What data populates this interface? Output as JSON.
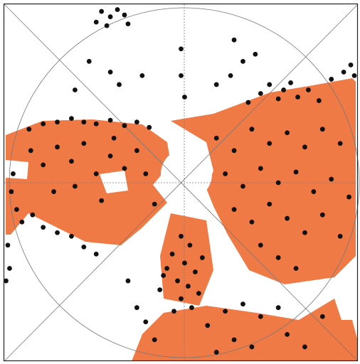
{
  "chart_data": {
    "type": "scatter",
    "color": "#111111",
    "xlim": [
      -1,
      1
    ],
    "ylim": [
      -1,
      1
    ],
    "x": [
      -0.45,
      -0.4,
      -0.36,
      -0.32,
      -0.48,
      -0.3,
      -0.42,
      -0.52,
      -0.4,
      -0.35,
      -0.6,
      -0.22,
      0.0,
      0.0,
      0.02,
      0.3,
      0.35,
      0.28,
      0.42,
      0.2,
      -0.7,
      -0.62,
      -0.55,
      -0.48,
      -0.4,
      -0.32,
      -0.25,
      -0.18,
      -0.78,
      -0.86,
      0.5,
      0.58,
      0.62,
      0.66,
      0.72,
      0.78,
      0.85,
      0.92,
      0.96,
      0.98,
      0.55,
      0.45,
      0.38,
      -0.85,
      -0.78,
      -0.7,
      -0.62,
      -0.55,
      -0.48,
      -0.4,
      -0.32,
      -0.6,
      -0.72,
      -0.45,
      -0.38,
      -0.25,
      -0.2,
      -0.15,
      -0.95,
      -0.96,
      -0.93,
      -0.9,
      -0.84,
      -0.78,
      -0.7,
      -0.62,
      -0.55,
      -0.48,
      -0.98,
      -0.97,
      -0.99,
      0.2,
      0.3,
      0.4,
      0.5,
      0.6,
      0.7,
      0.8,
      0.9,
      0.25,
      0.35,
      0.45,
      0.55,
      0.65,
      0.75,
      0.85,
      0.95,
      0.3,
      0.4,
      0.5,
      0.6,
      0.7,
      0.8,
      0.9,
      0.45,
      0.55,
      0.65,
      0.0,
      0.05,
      -0.05,
      0.02,
      -0.08,
      0.08,
      -0.02,
      0.04,
      -0.1,
      0.12,
      -0.12,
      0.0,
      0.1,
      0.06,
      -0.04,
      -0.3,
      -0.25,
      -0.2,
      0.15,
      0.25,
      0.35,
      0.45,
      0.55,
      0.3,
      0.4,
      0.2,
      -0.15,
      0.6,
      0.7,
      0.8
    ],
    "y": [
      0.96,
      0.93,
      0.97,
      0.94,
      0.9,
      0.89,
      0.88,
      0.68,
      0.62,
      0.55,
      0.52,
      0.6,
      0.75,
      0.6,
      0.48,
      0.8,
      0.68,
      0.6,
      0.72,
      0.55,
      0.34,
      0.36,
      0.34,
      0.33,
      0.35,
      0.32,
      0.34,
      0.31,
      0.33,
      0.3,
      0.55,
      0.52,
      0.56,
      0.48,
      0.52,
      0.46,
      0.58,
      0.62,
      0.66,
      0.6,
      0.47,
      0.5,
      0.45,
      0.18,
      0.1,
      0.2,
      0.12,
      0.22,
      0.05,
      0.15,
      0.08,
      -0.02,
      -0.05,
      -0.1,
      0.25,
      0.18,
      0.05,
      -0.12,
      0.05,
      -0.05,
      -0.15,
      -0.22,
      -0.18,
      -0.25,
      -0.28,
      -0.3,
      -0.36,
      -0.4,
      -0.35,
      -0.48,
      -0.55,
      0.25,
      0.18,
      0.3,
      0.22,
      0.28,
      0.2,
      0.3,
      0.22,
      0.05,
      -0.02,
      0.08,
      0.0,
      0.06,
      -0.05,
      0.02,
      -0.08,
      -0.15,
      -0.22,
      -0.12,
      -0.2,
      -0.28,
      -0.18,
      -0.3,
      -0.35,
      -0.42,
      -0.48,
      -0.3,
      -0.35,
      -0.4,
      -0.45,
      -0.48,
      -0.5,
      -0.55,
      -0.58,
      -0.52,
      -0.42,
      -0.6,
      -0.65,
      -0.62,
      -0.7,
      -0.72,
      -0.55,
      -0.7,
      -0.78,
      -0.8,
      -0.72,
      -0.68,
      -0.75,
      -0.7,
      -0.88,
      -0.92,
      -0.95,
      -0.88,
      -0.85,
      -0.92,
      -0.75
    ]
  }
}
